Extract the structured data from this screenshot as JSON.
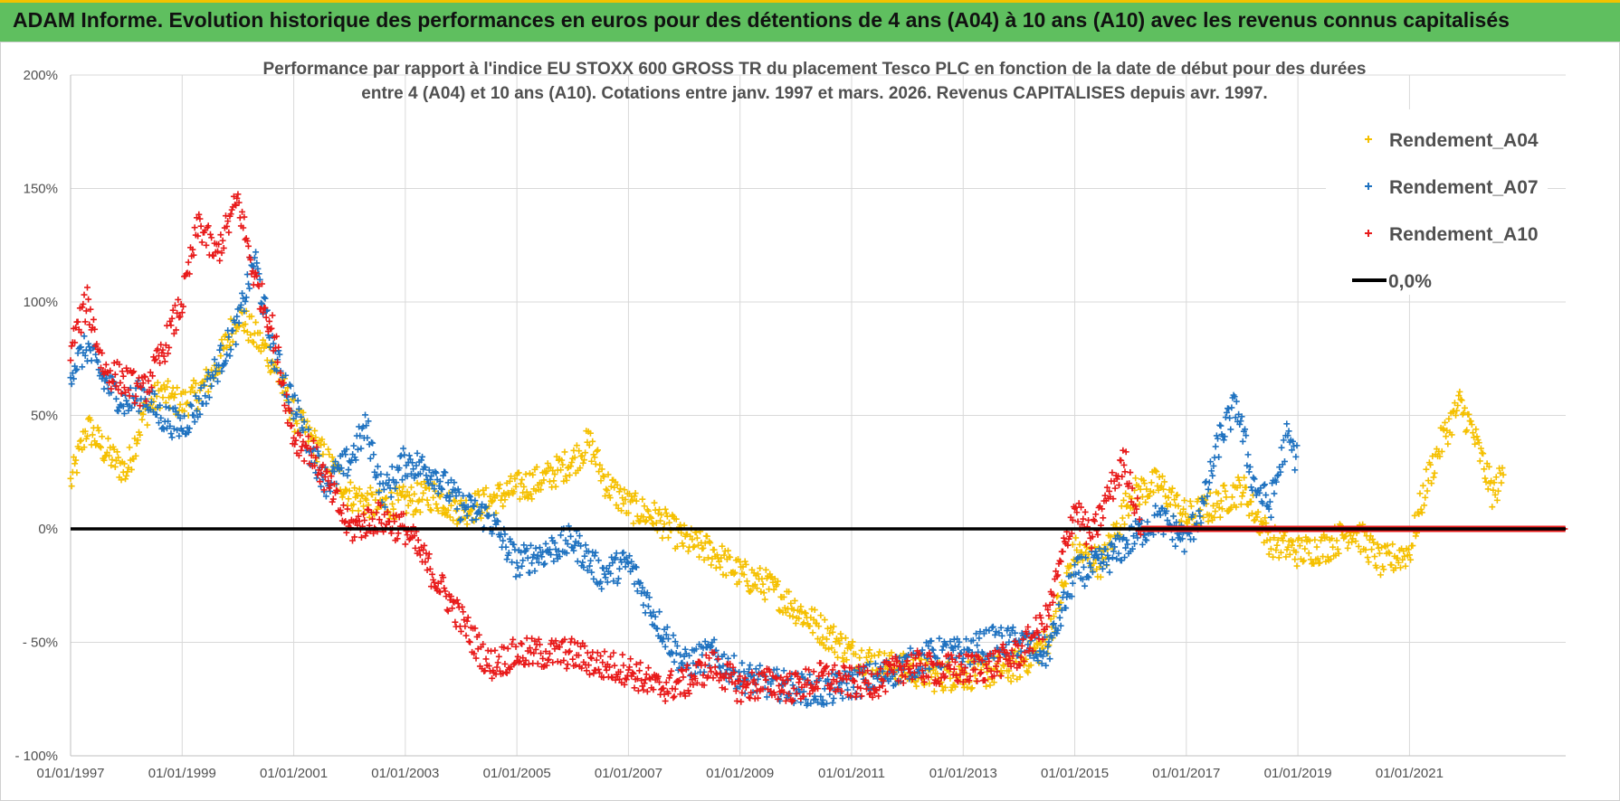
{
  "banner": {
    "title": "ADAM Informe. Evolution historique des performances en euros pour des détentions de 4 ans (A04) à 10 ans (A10) avec les revenus connus capitalisés"
  },
  "chart_data": {
    "type": "scatter",
    "title_line1": "Performance par rapport à l'indice EU STOXX 600 GROSS TR  du placement Tesco PLC en fonction de la date de début pour des durées",
    "title_line2": "entre 4 (A04) et 10 ans (A10).  Cotations entre janv. 1997 et mars. 2026. Revenus CAPITALISES depuis avr. 1997.",
    "xlabel": "",
    "ylabel": "",
    "xlim": [
      1997.0,
      2023.8
    ],
    "ylim": [
      -100,
      200
    ],
    "grid": true,
    "legend_position": "top-right",
    "y_ticks": [
      {
        "value": 200,
        "label": "200%"
      },
      {
        "value": 150,
        "label": "150%"
      },
      {
        "value": 100,
        "label": "100%"
      },
      {
        "value": 50,
        "label": "50%"
      },
      {
        "value": 0,
        "label": "0%"
      },
      {
        "value": -50,
        "label": "- 50%"
      },
      {
        "value": -100,
        "label": "- 100%"
      }
    ],
    "x_ticks": [
      {
        "value": 1997,
        "label": "01/01/1997"
      },
      {
        "value": 1999,
        "label": "01/01/1999"
      },
      {
        "value": 2001,
        "label": "01/01/2001"
      },
      {
        "value": 2003,
        "label": "01/01/2003"
      },
      {
        "value": 2005,
        "label": "01/01/2005"
      },
      {
        "value": 2007,
        "label": "01/01/2007"
      },
      {
        "value": 2009,
        "label": "01/01/2009"
      },
      {
        "value": 2011,
        "label": "01/01/2011"
      },
      {
        "value": 2013,
        "label": "01/01/2013"
      },
      {
        "value": 2015,
        "label": "01/01/2015"
      },
      {
        "value": 2017,
        "label": "01/01/2017"
      },
      {
        "value": 2019,
        "label": "01/01/2019"
      },
      {
        "value": 2021,
        "label": "01/01/2021"
      }
    ],
    "series": [
      {
        "name": "Rendement_A04",
        "color": "#f5c000",
        "marker": "+",
        "x": [
          1997.0,
          1997.3,
          1997.6,
          1998.0,
          1998.3,
          1998.6,
          1999.0,
          1999.3,
          1999.6,
          2000.0,
          2000.3,
          2000.6,
          2001.0,
          2001.3,
          2001.6,
          2002.0,
          2002.5,
          2003.0,
          2003.5,
          2004.0,
          2004.5,
          2005.0,
          2005.5,
          2006.0,
          2006.3,
          2006.6,
          2007.0,
          2007.5,
          2008.0,
          2008.5,
          2009.0,
          2009.5,
          2010.0,
          2010.5,
          2011.0,
          2011.5,
          2012.0,
          2012.5,
          2013.0,
          2013.5,
          2014.0,
          2014.5,
          2015.0,
          2015.5,
          2016.0,
          2016.5,
          2017.0,
          2017.5,
          2018.0,
          2018.5,
          2019.0,
          2019.5,
          2020.0,
          2020.5,
          2021.0,
          2021.3,
          2021.6,
          2021.9,
          2022.1,
          2022.3,
          2022.5,
          2022.7
        ],
        "y": [
          20,
          45,
          35,
          25,
          50,
          60,
          55,
          60,
          70,
          95,
          85,
          75,
          50,
          40,
          30,
          15,
          10,
          12,
          15,
          8,
          12,
          18,
          22,
          30,
          38,
          20,
          10,
          5,
          -5,
          -10,
          -20,
          -25,
          -35,
          -45,
          -55,
          -60,
          -62,
          -65,
          -64,
          -63,
          -60,
          -50,
          -10,
          -15,
          15,
          20,
          5,
          10,
          18,
          -5,
          -10,
          -8,
          0,
          -15,
          -10,
          20,
          40,
          55,
          45,
          30,
          15,
          25
        ]
      },
      {
        "name": "Rendement_A07",
        "color": "#1f72c0",
        "marker": "+",
        "x": [
          1997.0,
          1997.3,
          1997.6,
          1998.0,
          1998.3,
          1998.6,
          1999.0,
          1999.3,
          1999.6,
          2000.0,
          2000.3,
          2000.6,
          2001.0,
          2001.3,
          2001.6,
          2002.0,
          2002.3,
          2002.6,
          2003.0,
          2003.5,
          2004.0,
          2004.5,
          2005.0,
          2005.5,
          2006.0,
          2006.5,
          2007.0,
          2007.5,
          2008.0,
          2008.5,
          2009.0,
          2009.5,
          2010.0,
          2010.5,
          2011.0,
          2011.5,
          2012.0,
          2012.5,
          2013.0,
          2013.5,
          2014.0,
          2014.5,
          2015.0,
          2015.5,
          2016.0,
          2016.5,
          2017.0,
          2017.3,
          2017.6,
          2017.9,
          2018.2,
          2018.5,
          2018.8,
          2019.0
        ],
        "y": [
          70,
          80,
          65,
          55,
          60,
          50,
          45,
          55,
          70,
          90,
          120,
          80,
          55,
          35,
          20,
          30,
          45,
          15,
          30,
          25,
          10,
          5,
          -15,
          -10,
          -5,
          -20,
          -15,
          -40,
          -60,
          -55,
          -65,
          -68,
          -70,
          -72,
          -68,
          -65,
          -60,
          -55,
          -55,
          -50,
          -50,
          -55,
          -20,
          -15,
          -5,
          5,
          -5,
          10,
          40,
          55,
          20,
          10,
          40,
          30
        ]
      },
      {
        "name": "Rendement_A10",
        "color": "#e81a1a",
        "marker": "+",
        "x": [
          1997.0,
          1997.3,
          1997.6,
          1998.0,
          1998.3,
          1998.6,
          1999.0,
          1999.3,
          1999.6,
          2000.0,
          2000.3,
          2000.6,
          2001.0,
          2001.3,
          2001.6,
          2002.0,
          2002.5,
          2003.0,
          2003.5,
          2004.0,
          2004.5,
          2005.0,
          2005.5,
          2006.0,
          2006.5,
          2007.0,
          2007.5,
          2008.0,
          2008.5,
          2009.0,
          2009.5,
          2010.0,
          2010.5,
          2011.0,
          2011.5,
          2012.0,
          2012.5,
          2013.0,
          2013.5,
          2014.0,
          2014.5,
          2015.0,
          2015.3,
          2015.6,
          2015.9,
          2016.2,
          2016.5,
          2017.0,
          2018.0,
          2019.0,
          2020.0,
          2021.0,
          2022.0,
          2023.0,
          2023.8
        ],
        "y": [
          80,
          100,
          70,
          65,
          60,
          75,
          100,
          135,
          120,
          145,
          110,
          90,
          40,
          35,
          20,
          0,
          5,
          0,
          -20,
          -40,
          -60,
          -55,
          -55,
          -55,
          -60,
          -62,
          -70,
          -68,
          -60,
          -70,
          -68,
          -70,
          -65,
          -68,
          -67,
          -60,
          -62,
          -62,
          -60,
          -55,
          -40,
          10,
          -5,
          15,
          30,
          0,
          0,
          0,
          0,
          0,
          0,
          0,
          0,
          0,
          0
        ]
      },
      {
        "name": "0,0%",
        "color": "#000000",
        "marker": "line",
        "x": [
          1997.0,
          2023.8
        ],
        "y": [
          0,
          0
        ]
      }
    ]
  }
}
